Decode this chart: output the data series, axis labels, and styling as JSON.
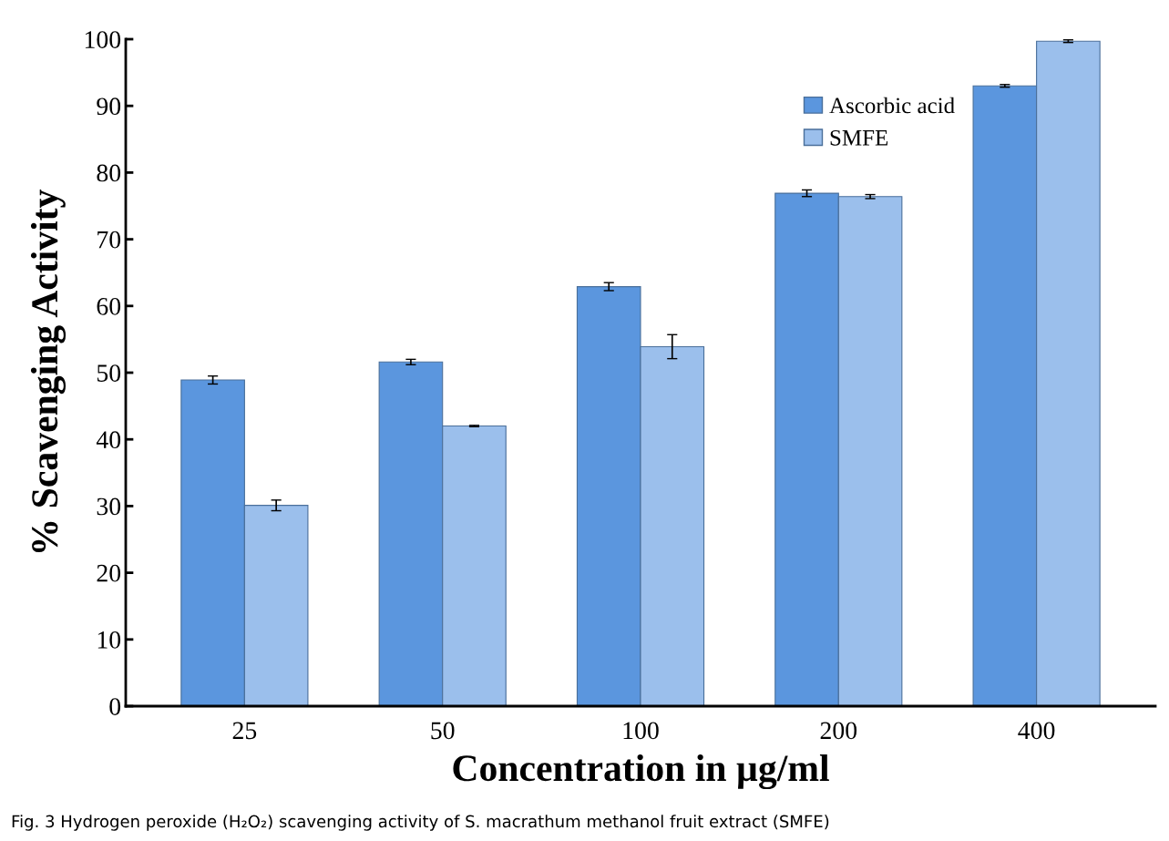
{
  "chart_data": {
    "type": "bar",
    "xlabel": "Concentration in µg/ml",
    "ylabel": "% Scavenging Activity",
    "categories": [
      "25",
      "50",
      "100",
      "200",
      "400"
    ],
    "series": [
      {
        "name": "Ascorbic acid",
        "color": "#5b96de",
        "values": [
          48.9,
          51.6,
          62.9,
          76.9,
          93.0
        ],
        "errors": [
          0.6,
          0.4,
          0.6,
          0.5,
          0.2
        ]
      },
      {
        "name": "SMFE",
        "color": "#9bbfec",
        "values": [
          30.1,
          42.0,
          53.9,
          76.4,
          99.7
        ],
        "errors": [
          0.8,
          0.1,
          1.8,
          0.3,
          0.2
        ]
      }
    ],
    "ylim": [
      0,
      100
    ],
    "yticks": [
      0,
      10,
      20,
      30,
      40,
      50,
      60,
      70,
      80,
      90,
      100
    ],
    "grid": false,
    "legend": "top right",
    "annotations": [
      "Fig. 3 Hydrogen peroxide (H₂O₂) scavenging activity of S. macrathum methanol fruit extract (SMFE)"
    ]
  }
}
